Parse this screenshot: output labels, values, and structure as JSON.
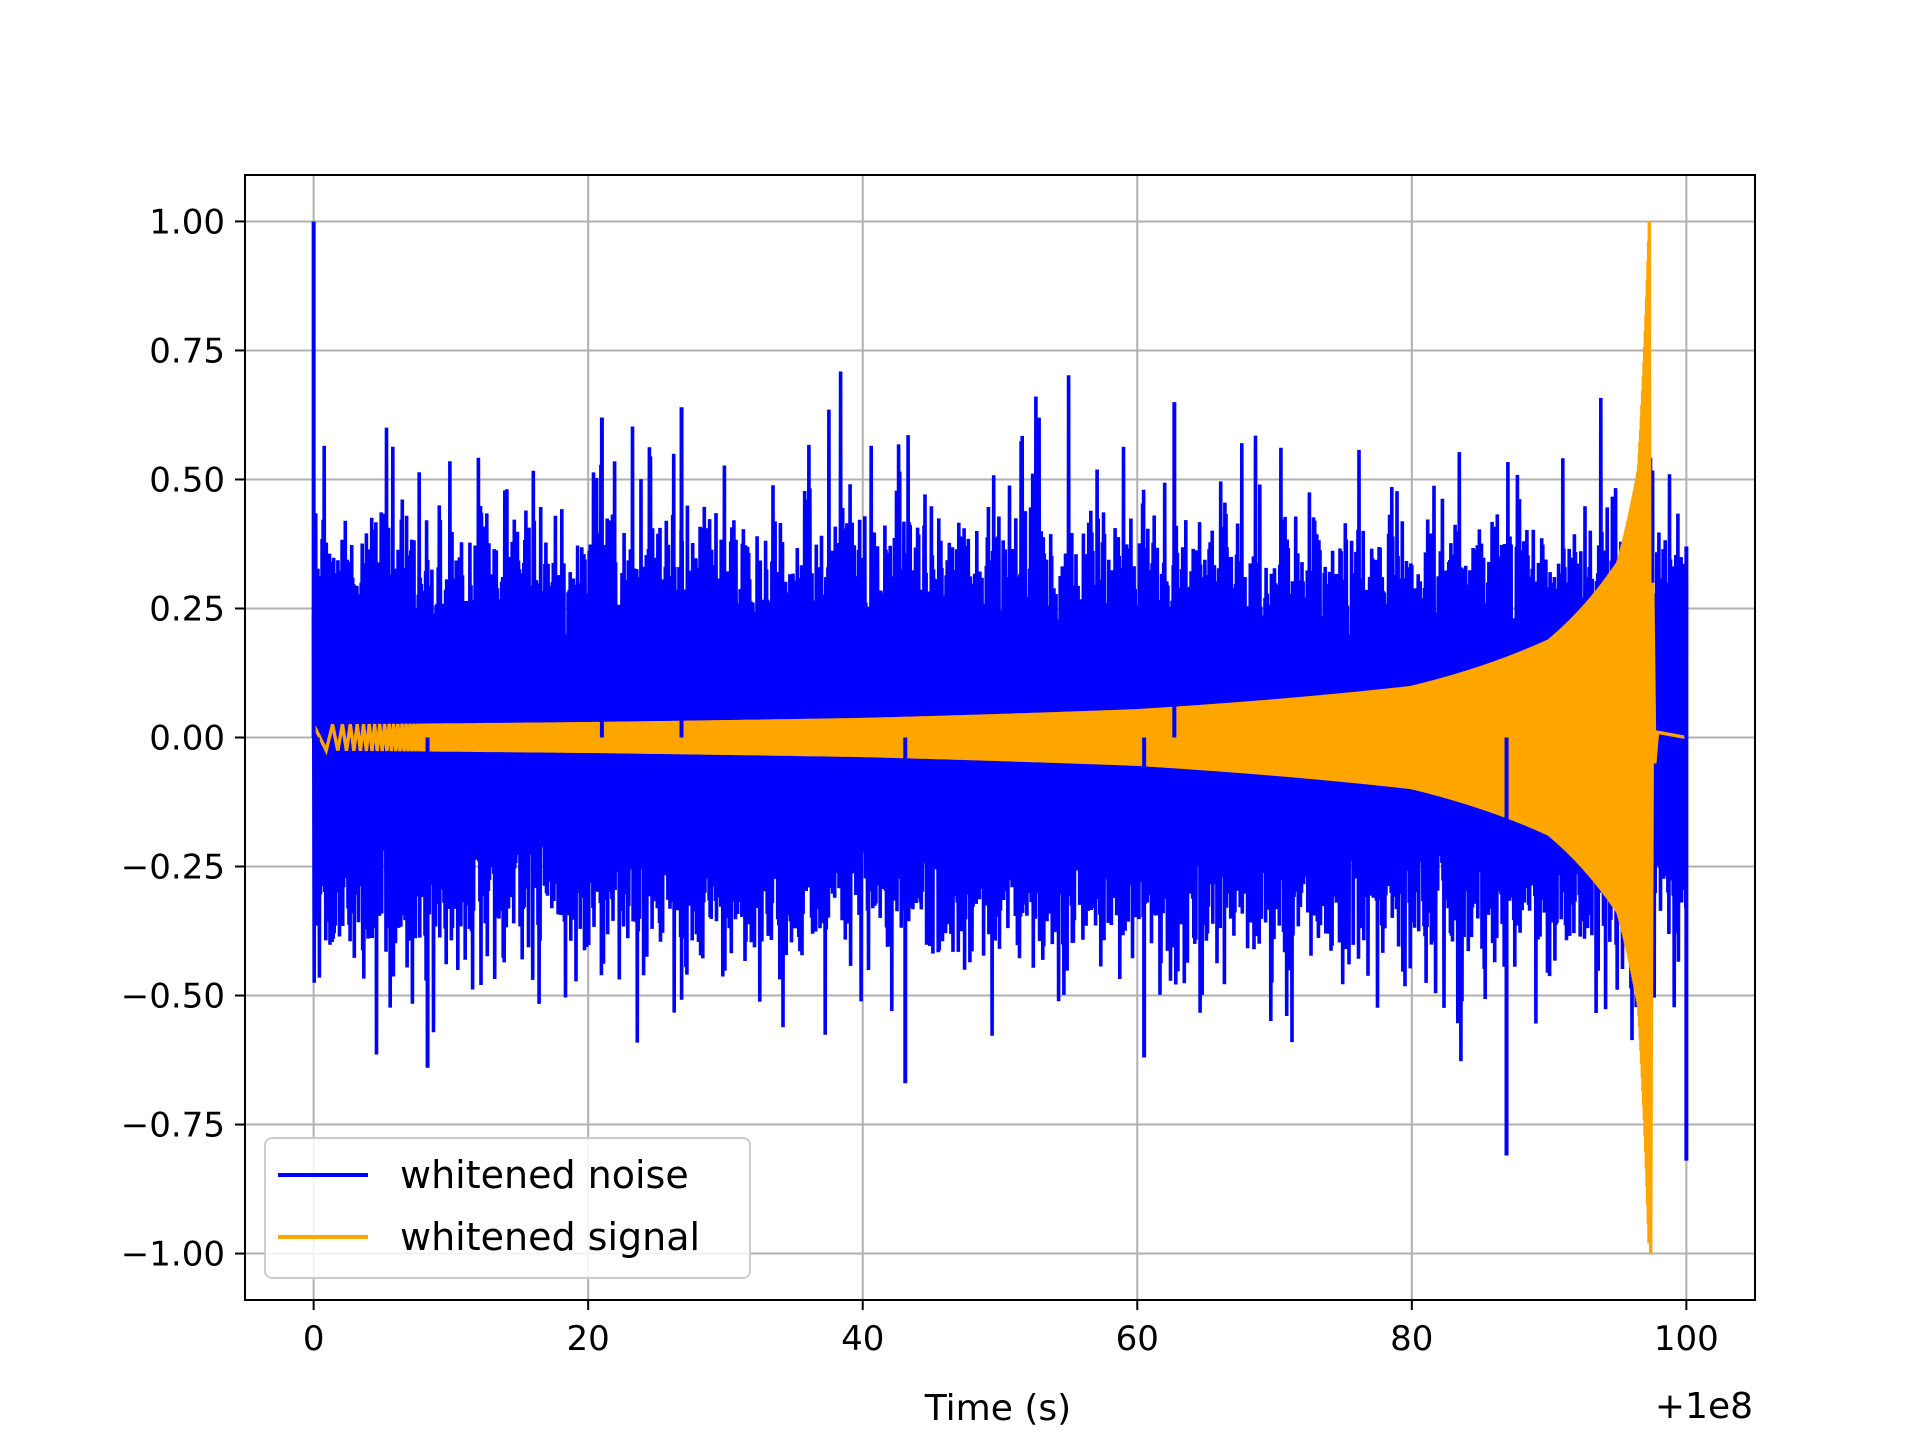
{
  "chart_data": {
    "type": "line",
    "title": "",
    "xlabel": "Time (s)",
    "ylabel": "",
    "x_offset_label": "+1e8",
    "xlim": [
      -5,
      105
    ],
    "ylim": [
      -1.09,
      1.09
    ],
    "x_ticks": [
      0,
      20,
      40,
      60,
      80,
      100
    ],
    "x_tick_labels": [
      "0",
      "20",
      "40",
      "60",
      "80",
      "100"
    ],
    "y_ticks": [
      1.0,
      0.75,
      0.5,
      0.25,
      0.0,
      -0.25,
      -0.5,
      -0.75,
      -1.0
    ],
    "y_tick_labels": [
      "1.00",
      "0.75",
      "0.50",
      "0.25",
      "0.00",
      "−0.25",
      "−0.50",
      "−0.75",
      "−1.00"
    ],
    "grid": true,
    "legend_position": "lower-left",
    "series": [
      {
        "name": "whitened noise",
        "color": "#0000ff",
        "x_range": [
          0,
          100
        ],
        "values_note_free": true,
        "typical_amplitude": 0.4,
        "spikes": [
          {
            "x": 0.0,
            "y": 1.0
          },
          {
            "x": 0.3,
            "y": -0.35
          },
          {
            "x": 8.3,
            "y": -0.64
          },
          {
            "x": 21.0,
            "y": 0.62
          },
          {
            "x": 26.8,
            "y": 0.64
          },
          {
            "x": 43.1,
            "y": -0.67
          },
          {
            "x": 62.7,
            "y": 0.65
          },
          {
            "x": 60.5,
            "y": -0.62
          },
          {
            "x": 86.9,
            "y": -0.81
          },
          {
            "x": 100.0,
            "y": -0.82
          },
          {
            "x": 100.0,
            "y": 0.37
          }
        ]
      },
      {
        "name": "whitened signal",
        "color": "#ffa500",
        "x_range": [
          0,
          100
        ],
        "envelope": [
          {
            "x": 0,
            "y": 0.025
          },
          {
            "x": 20,
            "y": 0.03
          },
          {
            "x": 40,
            "y": 0.038
          },
          {
            "x": 60,
            "y": 0.055
          },
          {
            "x": 80,
            "y": 0.1
          },
          {
            "x": 90,
            "y": 0.19
          },
          {
            "x": 95,
            "y": 0.34
          },
          {
            "x": 96.5,
            "y": 0.52
          },
          {
            "x": 97.3,
            "y": 1.0
          }
        ],
        "post_merger_value": 0.0
      }
    ]
  }
}
